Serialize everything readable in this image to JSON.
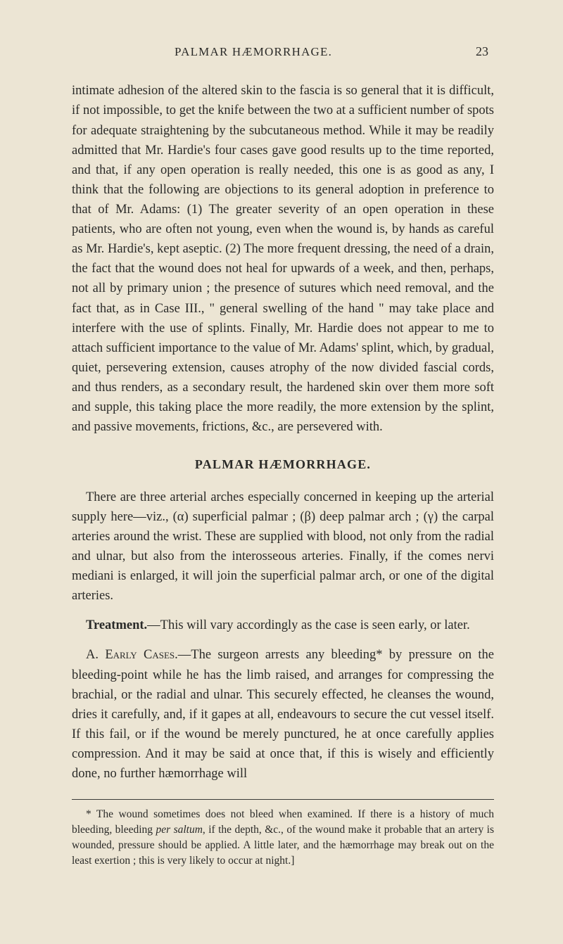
{
  "document": {
    "running_title": "PALMAR HÆMORRHAGE.",
    "page_number": "23",
    "para_first": "intimate adhesion of the altered skin to the fascia is so general that it is difficult, if not impossible, to get the knife between the two at a sufficient number of spots for adequate straightening by the subcutaneous method. While it may be readily admitted that Mr. Hardie's four cases gave good results up to the time reported, and that, if any open operation is really needed, this one is as good as any, I think that the following are objections to its general adoption in preference to that of Mr. Adams: (1) The greater severity of an open operation in these patients, who are often not young, even when the wound is, by hands as careful as Mr. Hardie's, kept aseptic. (2) The more frequent dressing, the need of a drain, the fact that the wound does not heal for upwards of a week, and then, perhaps, not all by primary union ; the presence of sutures which need removal, and the fact that, as in Case III., \" general swelling of the hand \" may take place and interfere with the use of splints. Finally, Mr. Hardie does not appear to me to attach sufficient importance to the value of Mr. Adams' splint, which, by gradual, quiet, persevering extension, causes atrophy of the now divided fascial cords, and thus renders, as a secondary result, the hardened skin over them more soft and supple, this taking place the more readily, the more extension by the splint, and passive movements, frictions, &c., are persevered with.",
    "section_heading": "PALMAR HÆMORRHAGE.",
    "para_anatomy": "There are three arterial arches especially concerned in keeping up the arterial supply here—viz., (α) superficial palmar ; (β) deep palmar arch ; (γ) the carpal arteries around the wrist. These are supplied with blood, not only from the radial and ulnar, but also from the interosseous arteries. Finally, if the comes nervi mediani is enlarged, it will join the superficial palmar arch, or one of the digital arteries.",
    "treatment_label": "Treatment.",
    "treatment_text": "—This will vary accordingly as the case is seen early, or later.",
    "early_label_a": "A. ",
    "early_label_smallcaps": "Early Cases.",
    "early_text": "—The surgeon arrests any bleeding* by pressure on the bleeding-point while he has the limb raised, and arranges for compressing the brachial, or the radial and ulnar. This securely effected, he cleanses the wound, dries it carefully, and, if it gapes at all, endeavours to secure the cut vessel itself. If this fail, or if the wound be merely punctured, he at once carefully applies compression. And it may be said at once that, if this is wisely and efficiently done, no further hæmorrhage will",
    "footnote_marker": "*",
    "footnote_text_1": " The wound sometimes does not bleed when examined. If there is a history of much bleeding, bleeding ",
    "footnote_italic": "per saltum",
    "footnote_text_2": ", if the depth, &c., of the wound make it probable that an artery is wounded, pressure should be applied. A little later, and the hæmorrhage may break out on the least exertion ; this is very likely to occur at night.]"
  }
}
